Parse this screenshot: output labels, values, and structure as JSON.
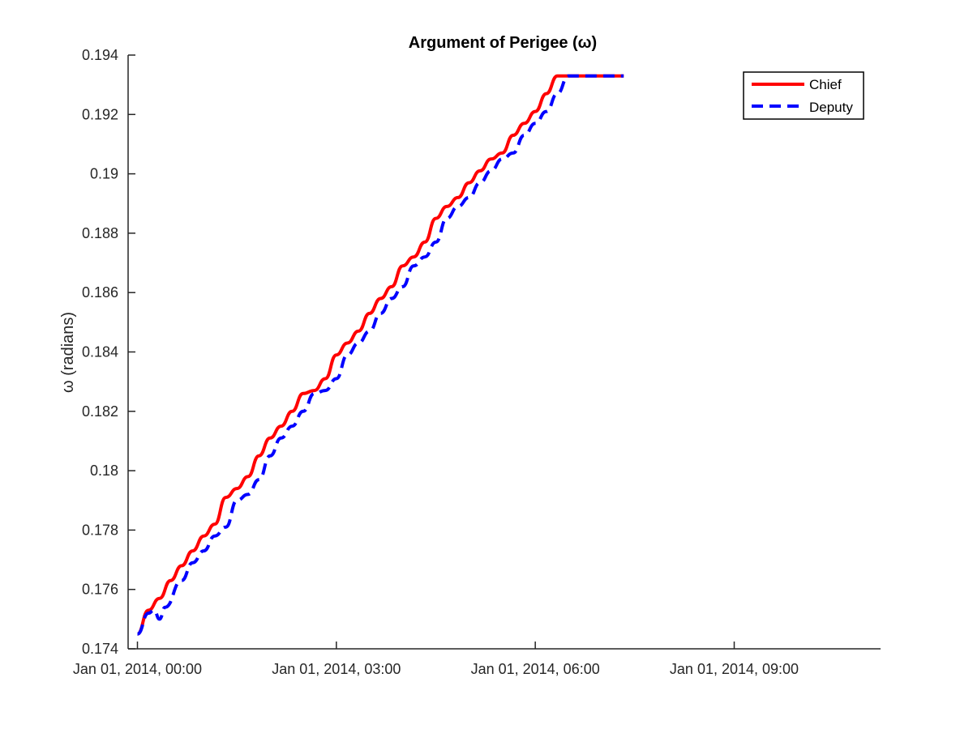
{
  "chart_data": {
    "type": "line",
    "title": "Argument of Perigee (ω)",
    "xlabel": "",
    "ylabel": "ω (radians)",
    "x_ticks": [
      "Jan 01, 2014, 00:00",
      "Jan 01, 2014, 03:00",
      "Jan 01, 2014, 06:00",
      "Jan 01, 2014, 09:00"
    ],
    "xlim": [
      "Jan 01, 2014, 00:00",
      "Jan 01, 2014, 11:13"
    ],
    "y_ticks": [
      "0.174",
      "0.176",
      "0.178",
      "0.18",
      "0.182",
      "0.184",
      "0.186",
      "0.188",
      "0.19",
      "0.192",
      "0.194"
    ],
    "ylim": [
      0.174,
      0.194
    ],
    "grid": false,
    "legend_position": "top-right",
    "colors": {
      "chief": "#ff0000",
      "deputy": "#0000ff"
    },
    "series": [
      {
        "name": "Chief",
        "style": "solid",
        "x": [
          "Jan 01, 2014, 00:00",
          "Jan 01, 2014, 00:10",
          "Jan 01, 2014, 00:20",
          "Jan 01, 2014, 00:30",
          "Jan 01, 2014, 00:40",
          "Jan 01, 2014, 00:50",
          "Jan 01, 2014, 01:00",
          "Jan 01, 2014, 01:10",
          "Jan 01, 2014, 01:20",
          "Jan 01, 2014, 01:30",
          "Jan 01, 2014, 01:40",
          "Jan 01, 2014, 01:50",
          "Jan 01, 2014, 02:00",
          "Jan 01, 2014, 02:10",
          "Jan 01, 2014, 02:20",
          "Jan 01, 2014, 02:30",
          "Jan 01, 2014, 02:40",
          "Jan 01, 2014, 02:50",
          "Jan 01, 2014, 03:00",
          "Jan 01, 2014, 03:10",
          "Jan 01, 2014, 03:20",
          "Jan 01, 2014, 03:30",
          "Jan 01, 2014, 03:40",
          "Jan 01, 2014, 03:50",
          "Jan 01, 2014, 04:00",
          "Jan 01, 2014, 04:10",
          "Jan 01, 2014, 04:20",
          "Jan 01, 2014, 04:30",
          "Jan 01, 2014, 04:40",
          "Jan 01, 2014, 04:50",
          "Jan 01, 2014, 05:00",
          "Jan 01, 2014, 05:10",
          "Jan 01, 2014, 05:20",
          "Jan 01, 2014, 05:30",
          "Jan 01, 2014, 05:40",
          "Jan 01, 2014, 05:50",
          "Jan 01, 2014, 06:00",
          "Jan 01, 2014, 06:10",
          "Jan 01, 2014, 06:20",
          "Jan 01, 2014, 06:30",
          "Jan 01, 2014, 06:40",
          "Jan 01, 2014, 06:50",
          "Jan 01, 2014, 07:00",
          "Jan 01, 2014, 07:10",
          "Jan 01, 2014, 07:20"
        ],
        "y": [
          0.1745,
          0.1753,
          0.1757,
          0.1763,
          0.1768,
          0.1773,
          0.1778,
          0.1782,
          0.1791,
          0.1794,
          0.1798,
          0.1805,
          0.1811,
          0.1815,
          0.182,
          0.1826,
          0.1827,
          0.1831,
          0.1839,
          0.1843,
          0.1847,
          0.1853,
          0.1858,
          0.1862,
          0.1869,
          0.1872,
          0.1877,
          0.1885,
          0.1889,
          0.1892,
          0.1897,
          0.1901,
          0.1905,
          0.1907,
          0.1913,
          0.1917,
          0.1921,
          0.1927,
          0.1933,
          0.1933,
          0.1933,
          0.1933,
          0.1933,
          0.1933,
          0.1933
        ]
      },
      {
        "name": "Deputy",
        "style": "dashed",
        "x": [
          "Jan 01, 2014, 00:00",
          "Jan 01, 2014, 00:10",
          "Jan 01, 2014, 00:15",
          "Jan 01, 2014, 00:20",
          "Jan 01, 2014, 00:25",
          "Jan 01, 2014, 00:40",
          "Jan 01, 2014, 00:50",
          "Jan 01, 2014, 01:00",
          "Jan 01, 2014, 01:10",
          "Jan 01, 2014, 01:20",
          "Jan 01, 2014, 01:30",
          "Jan 01, 2014, 01:40",
          "Jan 01, 2014, 01:50",
          "Jan 01, 2014, 02:00",
          "Jan 01, 2014, 02:10",
          "Jan 01, 2014, 02:20",
          "Jan 01, 2014, 02:30",
          "Jan 01, 2014, 02:40",
          "Jan 01, 2014, 02:50",
          "Jan 01, 2014, 03:00",
          "Jan 01, 2014, 03:10",
          "Jan 01, 2014, 03:20",
          "Jan 01, 2014, 03:30",
          "Jan 01, 2014, 03:40",
          "Jan 01, 2014, 03:50",
          "Jan 01, 2014, 04:00",
          "Jan 01, 2014, 04:10",
          "Jan 01, 2014, 04:20",
          "Jan 01, 2014, 04:30",
          "Jan 01, 2014, 04:40",
          "Jan 01, 2014, 04:50",
          "Jan 01, 2014, 05:00",
          "Jan 01, 2014, 05:10",
          "Jan 01, 2014, 05:20",
          "Jan 01, 2014, 05:30",
          "Jan 01, 2014, 05:40",
          "Jan 01, 2014, 05:50",
          "Jan 01, 2014, 06:00",
          "Jan 01, 2014, 06:10",
          "Jan 01, 2014, 06:20",
          "Jan 01, 2014, 06:30",
          "Jan 01, 2014, 06:40",
          "Jan 01, 2014, 06:50",
          "Jan 01, 2014, 07:00",
          "Jan 01, 2014, 07:20"
        ],
        "y": [
          0.1745,
          0.1752,
          0.1753,
          0.175,
          0.1754,
          0.1763,
          0.1769,
          0.1773,
          0.1778,
          0.1781,
          0.179,
          0.1792,
          0.1797,
          0.1805,
          0.1811,
          0.1815,
          0.182,
          0.1826,
          0.1827,
          0.1831,
          0.1839,
          0.1843,
          0.1847,
          0.1853,
          0.1858,
          0.1862,
          0.1869,
          0.1872,
          0.1877,
          0.1885,
          0.1889,
          0.1892,
          0.1897,
          0.1901,
          0.1905,
          0.1907,
          0.1913,
          0.1917,
          0.1921,
          0.1927,
          0.1933,
          0.1933,
          0.1933,
          0.1933,
          0.1933
        ]
      }
    ]
  }
}
